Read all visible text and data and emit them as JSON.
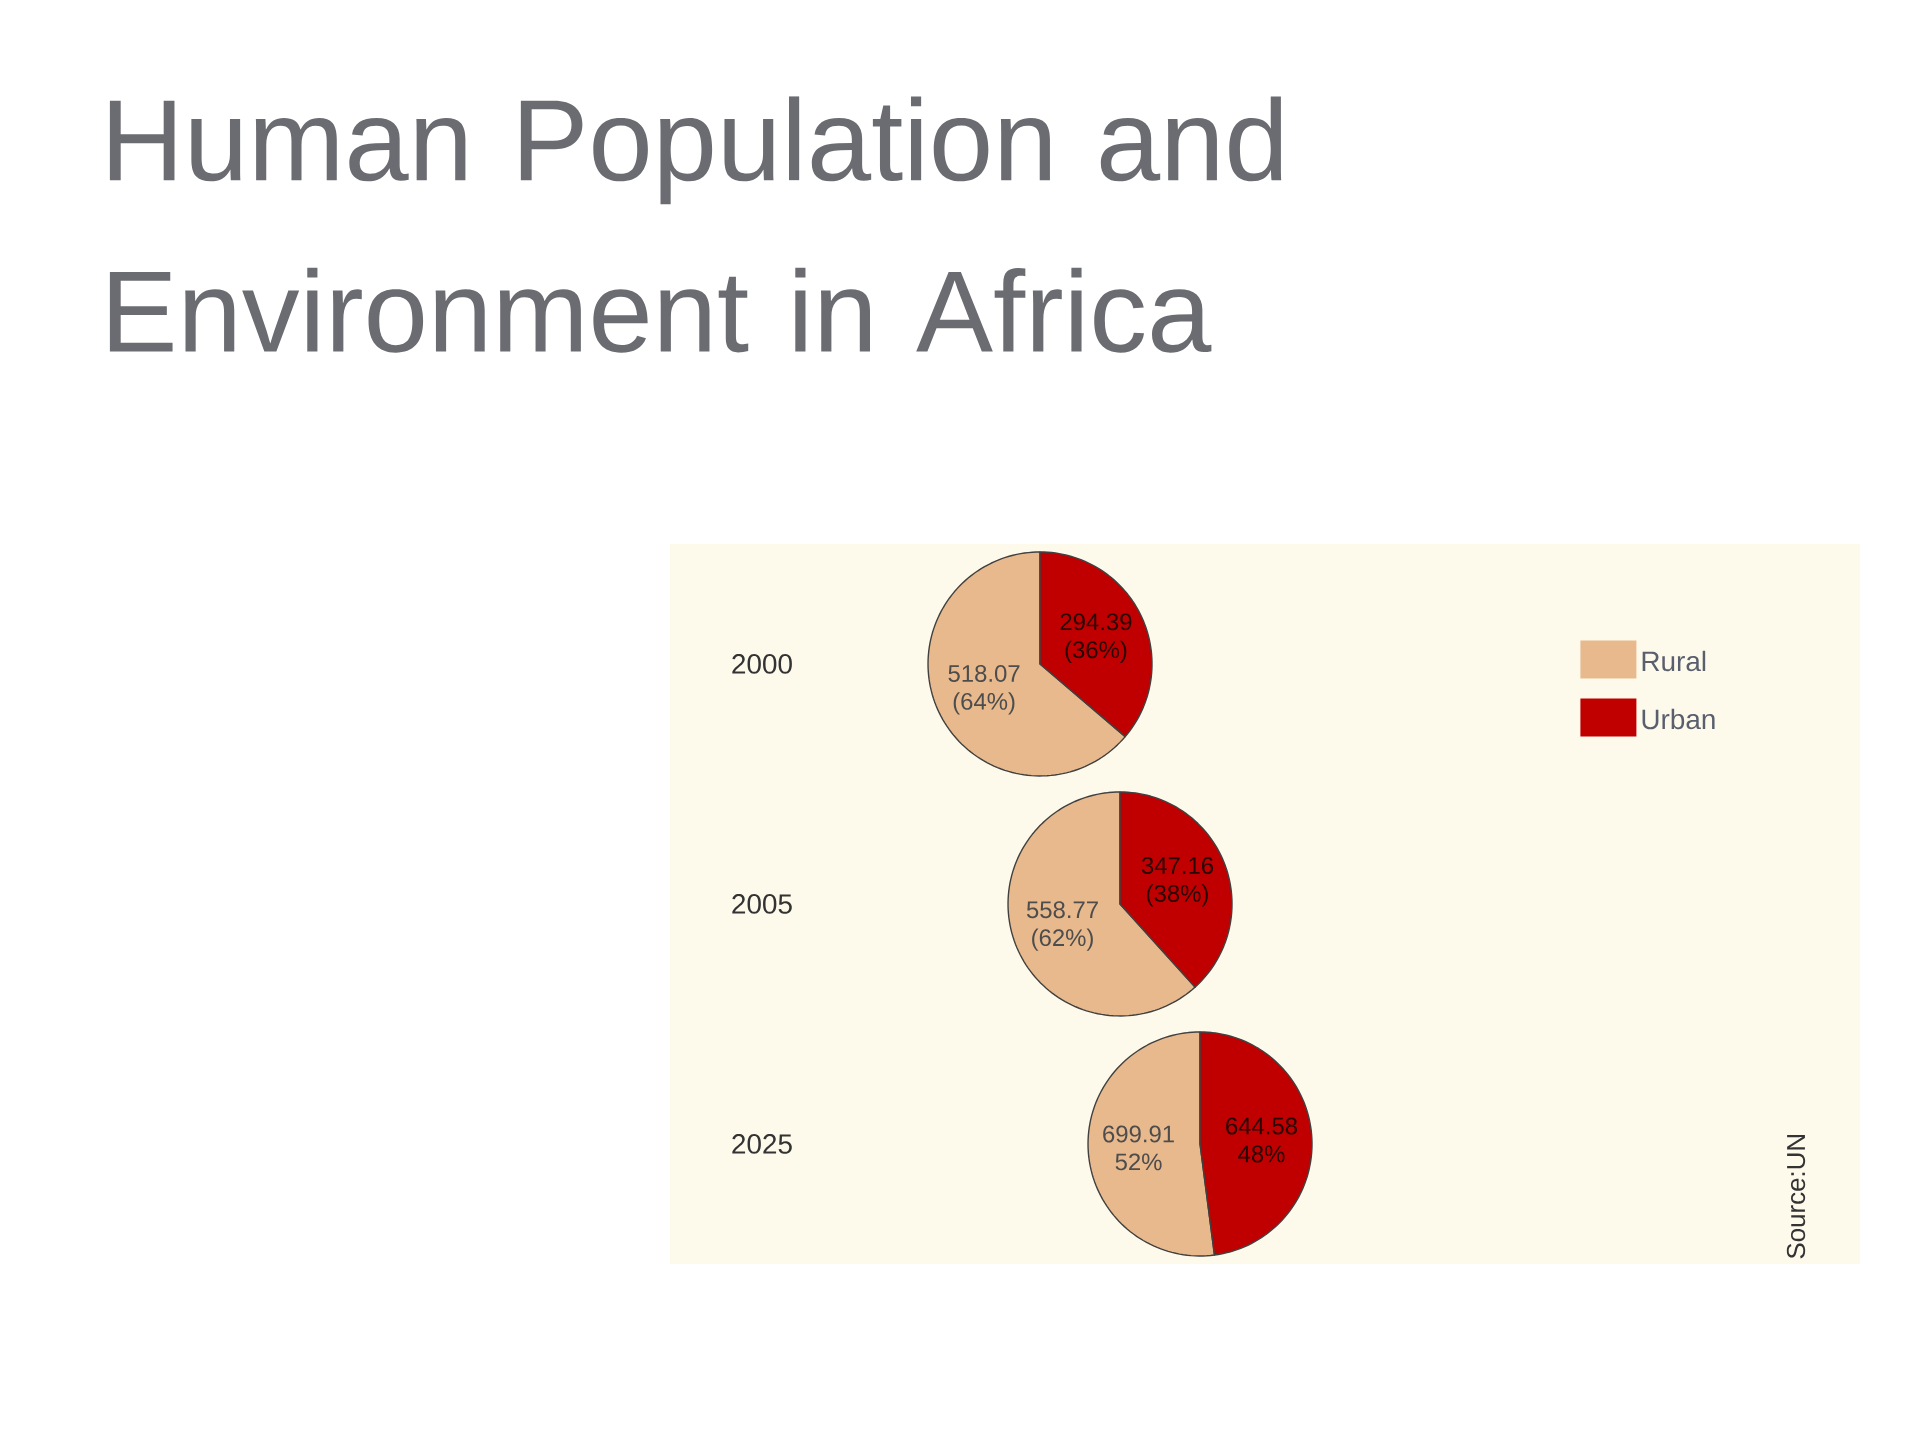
{
  "chart_data": [
    {
      "type": "pie",
      "title": "Human Population and Environment in Africa",
      "ylabel": "2000",
      "categories": [
        "Rural",
        "Urban"
      ],
      "values": [
        518.07,
        294.39
      ],
      "colors": [
        "#e8b98c",
        "#c00000"
      ],
      "value_labels": [
        "518.07 (64%)",
        "294.39 (36%)"
      ],
      "legend": "right"
    },
    {
      "type": "pie",
      "ylabel": "2005",
      "categories": [
        null,
        null
      ],
      "values": [
        558.77,
        347.16
      ],
      "colors": [
        "#e8b98c",
        "#c00000"
      ],
      "value_labels": [
        "558.77 (62%)",
        "347.16 (38%)"
      ]
    },
    {
      "type": "pie",
      "ylabel": "2025",
      "categories": [
        null,
        null
      ],
      "values": [
        699.91,
        644.58
      ],
      "colors": [
        "#e8b98c",
        "#c00000"
      ],
      "value_labels": [
        "699.91 52%",
        "644.58 48%"
      ],
      "annotations": [
        "Source:UN"
      ]
    }
  ]
}
